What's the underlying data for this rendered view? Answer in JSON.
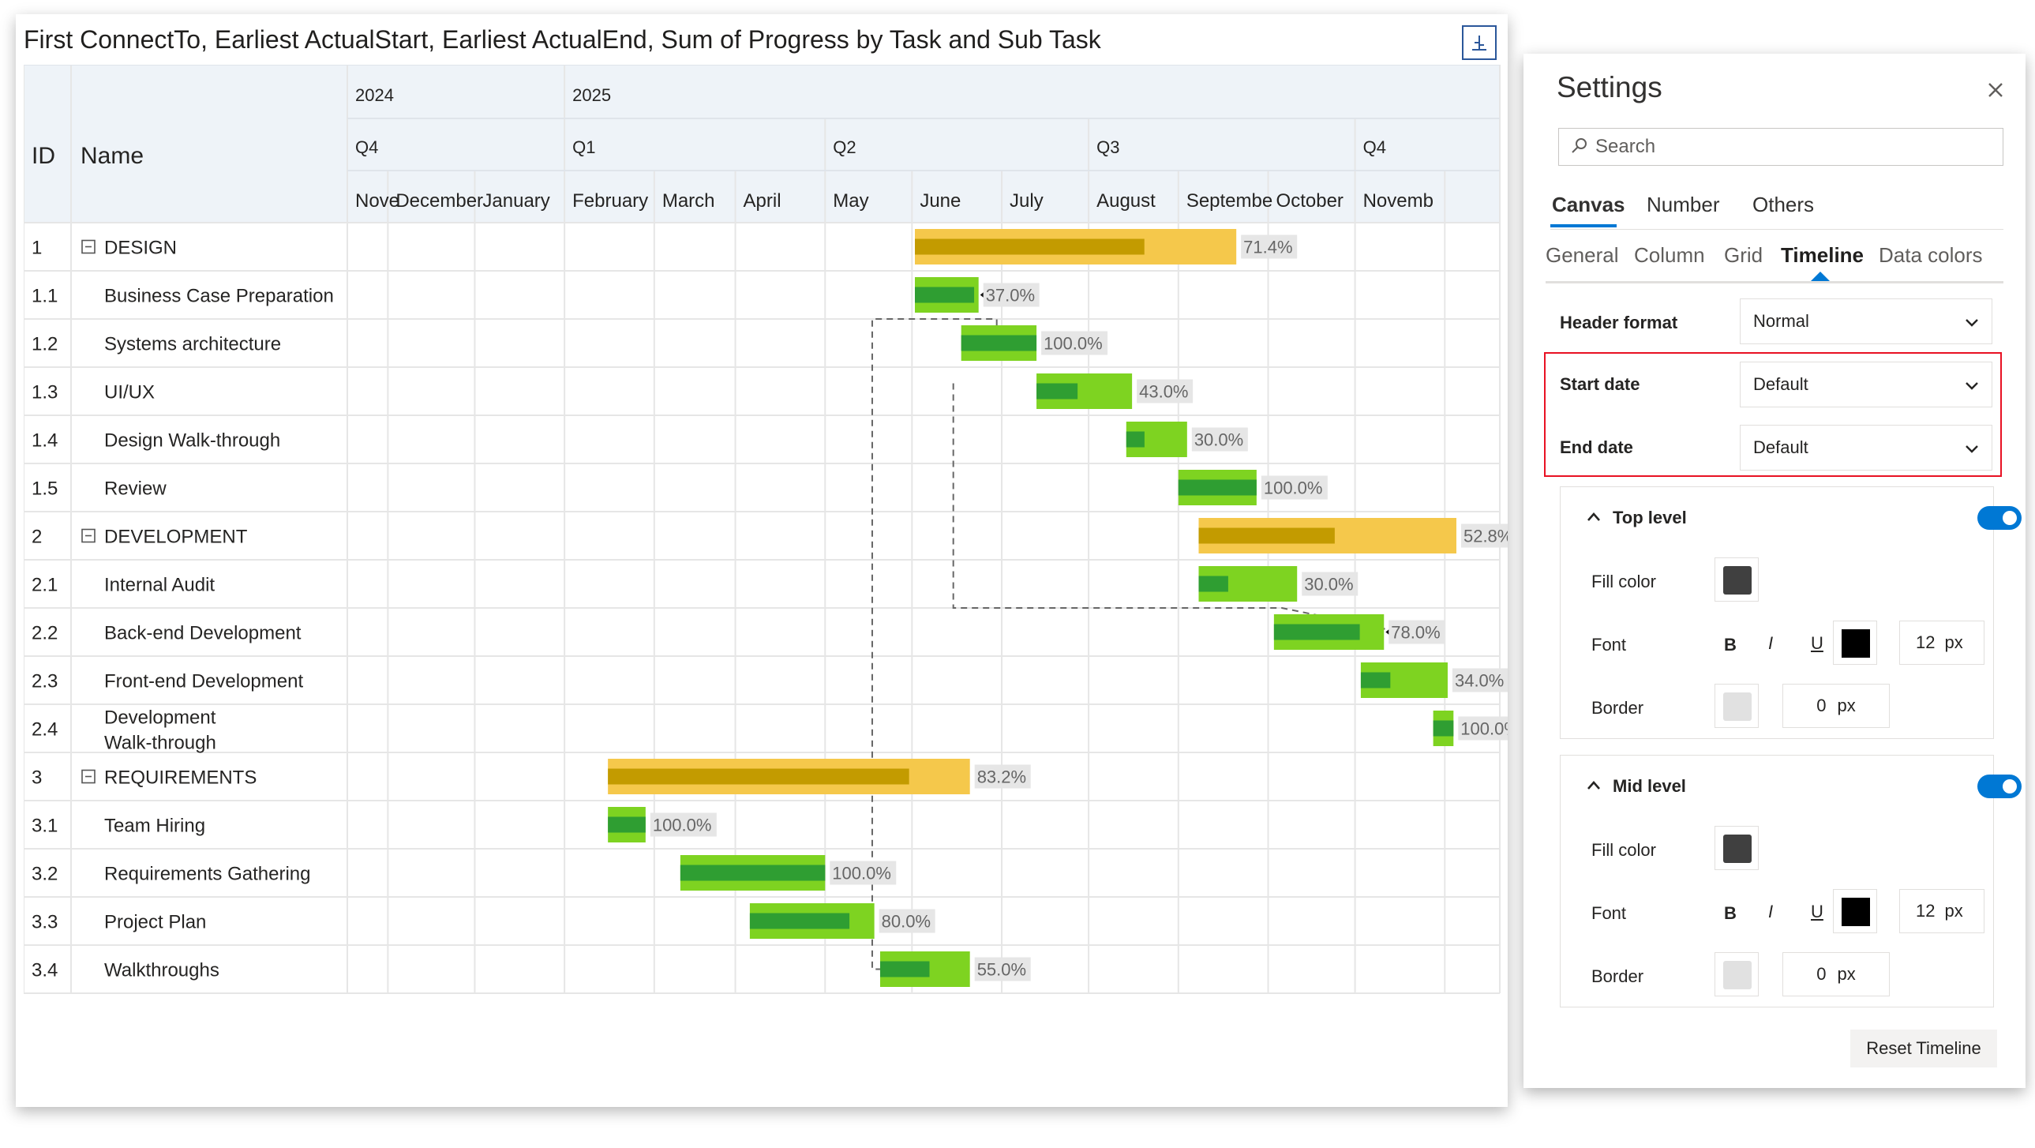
{
  "visual": {
    "title": "First ConnectTo, Earliest ActualStart, Earliest ActualEnd, Sum of Progress by Task and Sub Task",
    "header": {
      "id_label": "ID",
      "name_label": "Name",
      "years": [
        "2024",
        "2025"
      ],
      "quarters": [
        "Q4",
        "Q1",
        "Q2",
        "Q3",
        "Q4"
      ],
      "months": [
        "Nove",
        "December",
        "January",
        "February",
        "March",
        "April",
        "May",
        "June",
        "July",
        "August",
        "Septembe",
        "October",
        "Novemb"
      ]
    },
    "colors": {
      "summary_bar": "#f5c84b",
      "summary_progress": "#c39b00",
      "task_bar": "#7ed321",
      "task_progress": "#2f9e32",
      "label_bg": "#e6e6e6",
      "grid": "#e6e6e6"
    }
  },
  "chart_data": {
    "type": "gantt",
    "time_axis": {
      "start": "2024-10-18",
      "end": "2025-11-20"
    },
    "tasks": [
      {
        "id": "1",
        "name": "DESIGN",
        "group": true,
        "start": "2025-05-02",
        "end": "2025-08-21",
        "progress": "71.4%"
      },
      {
        "id": "1.1",
        "name": "Business Case Preparation",
        "start": "2025-05-02",
        "end": "2025-05-24",
        "progress": "37.0%"
      },
      {
        "id": "1.2",
        "name": "Systems architecture",
        "start": "2025-05-18",
        "end": "2025-06-13",
        "progress": "100.0%"
      },
      {
        "id": "1.3",
        "name": "UI/UX",
        "start": "2025-06-13",
        "end": "2025-07-16",
        "progress": "43.0%"
      },
      {
        "id": "1.4",
        "name": "Design Walk-through",
        "start": "2025-07-14",
        "end": "2025-08-04",
        "progress": "30.0%"
      },
      {
        "id": "1.5",
        "name": "Review",
        "start": "2025-08-01",
        "end": "2025-08-28",
        "progress": "100.0%"
      },
      {
        "id": "2",
        "name": "DEVELOPMENT",
        "group": true,
        "start": "2025-08-08",
        "end": "2025-11-05",
        "progress": "52.8%"
      },
      {
        "id": "2.1",
        "name": "Internal Audit",
        "start": "2025-08-08",
        "end": "2025-09-11",
        "progress": "30.0%"
      },
      {
        "id": "2.2",
        "name": "Back-end Development",
        "start": "2025-09-03",
        "end": "2025-10-11",
        "progress": "78.0%"
      },
      {
        "id": "2.3",
        "name": "Front-end Development",
        "start": "2025-10-03",
        "end": "2025-11-02",
        "progress": "34.0%"
      },
      {
        "id": "2.4",
        "name": "Development Walk-through",
        "start": "2025-10-28",
        "end": "2025-11-04",
        "progress": "100.0%"
      },
      {
        "id": "3",
        "name": "REQUIREMENTS",
        "group": true,
        "start": "2025-01-16",
        "end": "2025-05-21",
        "progress": "83.2%"
      },
      {
        "id": "3.1",
        "name": "Team Hiring",
        "start": "2025-01-16",
        "end": "2025-01-29",
        "progress": "100.0%"
      },
      {
        "id": "3.2",
        "name": "Requirements Gathering",
        "start": "2025-02-10",
        "end": "2025-04-01",
        "progress": "100.0%"
      },
      {
        "id": "3.3",
        "name": "Project Plan",
        "start": "2025-03-06",
        "end": "2025-04-18",
        "progress": "80.0%"
      },
      {
        "id": "3.4",
        "name": "Walkthroughs",
        "start": "2025-04-20",
        "end": "2025-05-21",
        "progress": "55.0%"
      }
    ]
  },
  "settings": {
    "title": "Settings",
    "search_placeholder": "Search",
    "main_tabs": [
      "Canvas",
      "Number",
      "Others"
    ],
    "sub_tabs": [
      "General",
      "Column",
      "Grid",
      "Timeline",
      "Data colors"
    ],
    "header_format": {
      "label": "Header format",
      "value": "Normal"
    },
    "start_date": {
      "label": "Start date",
      "value": "Default"
    },
    "end_date": {
      "label": "End date",
      "value": "Default"
    },
    "top_level": {
      "title": "Top level",
      "fill_label": "Fill color",
      "fill_color": "#404040",
      "font_label": "Font",
      "font_color": "#000000",
      "font_size": "12",
      "border_label": "Border",
      "border_color": "#e1e1e1",
      "border_size": "0"
    },
    "mid_level": {
      "title": "Mid level",
      "fill_label": "Fill color",
      "fill_color": "#404040",
      "font_label": "Font",
      "font_color": "#000000",
      "font_size": "12",
      "border_label": "Border",
      "border_color": "#e1e1e1",
      "border_size": "0"
    },
    "bold_label": "B",
    "italic_label": "I",
    "underline_label": "U",
    "unit_px": "px",
    "reset_label": "Reset Timeline",
    "accent": "#0078d4"
  }
}
